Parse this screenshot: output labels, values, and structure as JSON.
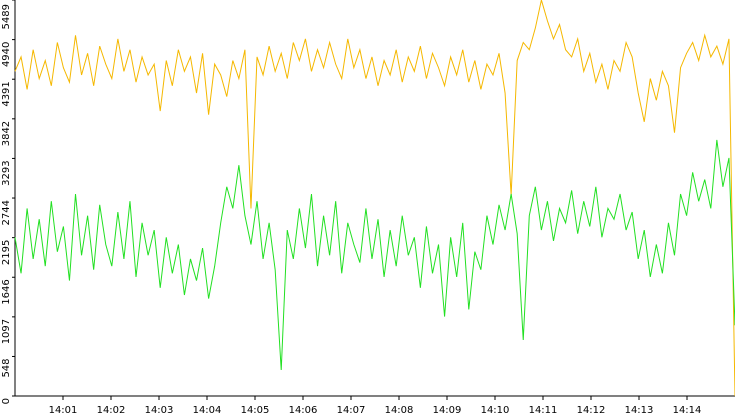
{
  "chart_data": {
    "type": "line",
    "xlim": [
      "14:00",
      "14:15"
    ],
    "xticks": [
      "14:01",
      "14:02",
      "14:03",
      "14:04",
      "14:05",
      "14:06",
      "14:07",
      "14:08",
      "14:09",
      "14:10",
      "14:11",
      "14:12",
      "14:13",
      "14:14"
    ],
    "ylim": [
      0,
      5489
    ],
    "yticks": [
      0,
      548,
      1097,
      1646,
      2195,
      2744,
      3293,
      3842,
      4391,
      4940,
      5489
    ],
    "grid": false,
    "series": [
      {
        "color": "#f5b800",
        "values": [
          4500,
          4700,
          4250,
          4800,
          4400,
          4650,
          4300,
          4900,
          4550,
          4350,
          5000,
          4450,
          4750,
          4300,
          4850,
          4600,
          4400,
          4950,
          4500,
          4800,
          4350,
          4700,
          4450,
          4600,
          3950,
          4650,
          4300,
          4800,
          4500,
          4700,
          4200,
          4750,
          3900,
          4600,
          4450,
          4150,
          4650,
          4400,
          4800,
          2600,
          4700,
          4450,
          4850,
          4500,
          4750,
          4400,
          4900,
          4650,
          4950,
          4500,
          4800,
          4550,
          4900,
          4600,
          4400,
          4950,
          4550,
          4800,
          4400,
          4700,
          4300,
          4650,
          4450,
          4800,
          4350,
          4700,
          4500,
          4850,
          4400,
          4750,
          4550,
          4300,
          4700,
          4450,
          4800,
          4350,
          4650,
          4250,
          4600,
          4450,
          4750,
          4200,
          2786,
          4650,
          4900,
          4800,
          5100,
          5489,
          5200,
          4950,
          5150,
          4800,
          4700,
          4950,
          4500,
          4750,
          4350,
          4600,
          4250,
          4650,
          4500,
          4900,
          4700,
          4200,
          3800,
          4400,
          4100,
          4500,
          4300,
          3650,
          4550,
          4750,
          4900,
          4650,
          5000,
          4700,
          4850,
          4600,
          4950,
          0
        ]
      },
      {
        "color": "#22e022",
        "values": [
          2200,
          1700,
          2600,
          1900,
          2450,
          1800,
          2700,
          2000,
          2350,
          1600,
          2800,
          1950,
          2500,
          1750,
          2650,
          2100,
          1800,
          2550,
          1900,
          2700,
          1650,
          2400,
          1950,
          2300,
          1500,
          2200,
          1700,
          2100,
          1400,
          1900,
          1600,
          2050,
          1350,
          1800,
          2400,
          2900,
          2600,
          3200,
          2500,
          2100,
          2700,
          1900,
          2400,
          1750,
          360,
          2300,
          1900,
          2600,
          2050,
          2800,
          1800,
          2500,
          1950,
          2700,
          1700,
          2400,
          2100,
          1850,
          2600,
          1900,
          2450,
          1650,
          2300,
          1800,
          2500,
          1950,
          2200,
          1500,
          2350,
          1700,
          2100,
          1100,
          2200,
          1650,
          2400,
          1200,
          2000,
          1750,
          2500,
          2100,
          2650,
          2300,
          2800,
          2250,
          776,
          2500,
          2900,
          2300,
          2700,
          2150,
          2600,
          2400,
          2850,
          2250,
          2700,
          2350,
          2900,
          2200,
          2600,
          2450,
          2800,
          2300,
          2550,
          1900,
          2300,
          1650,
          2100,
          1700,
          2400,
          1950,
          2800,
          2500,
          3100,
          2700,
          3000,
          2600,
          3550,
          2900,
          3300,
          980
        ]
      }
    ]
  }
}
